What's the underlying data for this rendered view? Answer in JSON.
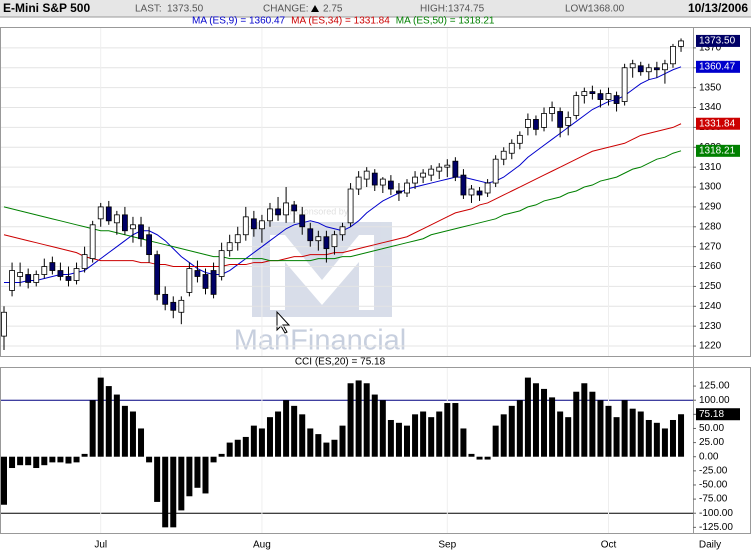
{
  "header": {
    "title": "E-Mini S&P 500",
    "stats": [
      {
        "label": "LAST:",
        "value": "1373.50"
      },
      {
        "label": "CHANGE:",
        "value": "2.75"
      },
      {
        "label": "HIGH:",
        "value": "1374.75"
      },
      {
        "label": "LOW:",
        "value": "1368.00"
      }
    ],
    "date": "10/13/2006",
    "watermark": "ManFinancial",
    "watermark_caption": "chart sponsored by"
  },
  "chart_data": [
    {
      "type": "candlestick",
      "open": [
        1225,
        1248,
        1255,
        1256,
        1252,
        1256,
        1262,
        1258,
        1255,
        1253,
        1259,
        1264,
        1284,
        1290,
        1282,
        1286,
        1279,
        1281,
        1276,
        1266,
        1246,
        1242,
        1237,
        1247,
        1258,
        1256,
        1258,
        1255,
        1268,
        1272,
        1276,
        1284,
        1279,
        1283,
        1289,
        1286,
        1291,
        1286,
        1279,
        1273,
        1275,
        1270,
        1276,
        1282,
        1299,
        1304,
        1307,
        1301,
        1303,
        1298,
        1297,
        1302,
        1305,
        1306,
        1308,
        1310,
        1313,
        1306,
        1296,
        1298,
        1297,
        1302,
        1314,
        1317,
        1322,
        1330,
        1334,
        1330,
        1337,
        1338,
        1331,
        1336,
        1346,
        1348,
        1347,
        1344,
        1346,
        1343,
        1360,
        1361,
        1358,
        1360,
        1359,
        1362,
        1370.75
      ],
      "high": [
        1240,
        1262,
        1262,
        1259,
        1258,
        1264,
        1265,
        1262,
        1260,
        1262,
        1270,
        1283,
        1292,
        1293,
        1288,
        1290,
        1285,
        1285,
        1280,
        1268,
        1250,
        1245,
        1245,
        1262,
        1263,
        1259,
        1262,
        1272,
        1276,
        1280,
        1290,
        1288,
        1286,
        1292,
        1295,
        1300,
        1293,
        1290,
        1282,
        1278,
        1278,
        1278,
        1282,
        1302,
        1308,
        1310,
        1309,
        1305,
        1306,
        1302,
        1304,
        1308,
        1309,
        1311,
        1312,
        1314,
        1315,
        1309,
        1301,
        1300,
        1304,
        1316,
        1320,
        1324,
        1328,
        1337,
        1336,
        1340,
        1343,
        1340,
        1338,
        1348,
        1350,
        1351,
        1349,
        1350,
        1348,
        1362,
        1364,
        1363,
        1362,
        1363,
        1364,
        1372,
        1374.75
      ],
      "low": [
        1218,
        1245,
        1250,
        1249,
        1250,
        1254,
        1256,
        1253,
        1250,
        1251,
        1257,
        1262,
        1280,
        1281,
        1276,
        1276,
        1272,
        1270,
        1262,
        1243,
        1238,
        1234,
        1231,
        1245,
        1252,
        1246,
        1244,
        1253,
        1265,
        1268,
        1273,
        1275,
        1272,
        1280,
        1283,
        1282,
        1282,
        1276,
        1270,
        1268,
        1262,
        1266,
        1273,
        1280,
        1296,
        1300,
        1298,
        1297,
        1296,
        1293,
        1295,
        1299,
        1302,
        1303,
        1304,
        1305,
        1303,
        1294,
        1292,
        1293,
        1295,
        1300,
        1311,
        1314,
        1319,
        1326,
        1326,
        1328,
        1333,
        1325,
        1326,
        1334,
        1342,
        1344,
        1340,
        1341,
        1338,
        1341,
        1355,
        1356,
        1354,
        1355,
        1352,
        1360,
        1368
      ],
      "close": [
        1237,
        1258,
        1257,
        1252,
        1256,
        1260,
        1258,
        1255,
        1253,
        1259,
        1266,
        1281,
        1290,
        1283,
        1286,
        1278,
        1281,
        1274,
        1266,
        1246,
        1241,
        1238,
        1243,
        1259,
        1255,
        1249,
        1246,
        1268,
        1272,
        1276,
        1285,
        1279,
        1283,
        1289,
        1286,
        1292,
        1288,
        1280,
        1273,
        1275,
        1269,
        1276,
        1280,
        1299,
        1305,
        1308,
        1301,
        1304,
        1299,
        1297,
        1302,
        1305,
        1307,
        1309,
        1310,
        1311,
        1305,
        1296,
        1299,
        1296,
        1302,
        1314,
        1318,
        1322,
        1326,
        1334,
        1329,
        1337,
        1340,
        1330,
        1335,
        1346,
        1348,
        1347,
        1344,
        1347,
        1342,
        1360,
        1362,
        1358,
        1360,
        1359,
        1362,
        1370.75,
        1373.5
      ],
      "up_color": "#ffffff",
      "down_color": "#000066",
      "last_label": "1373.50",
      "last_color": "#000066",
      "series": [
        {
          "name": "MA (ES,9) = 1360.47",
          "color": "#0000cc",
          "end_label": "1360.47",
          "values": [
            1252,
            1252,
            1252,
            1253,
            1253,
            1254,
            1255,
            1256,
            1256,
            1257,
            1258,
            1261,
            1264,
            1267,
            1270,
            1273,
            1276,
            1278,
            1278,
            1276,
            1273,
            1269,
            1265,
            1262,
            1259,
            1257,
            1256,
            1256,
            1258,
            1261,
            1264,
            1267,
            1270,
            1273,
            1276,
            1279,
            1281,
            1282,
            1283,
            1282,
            1280,
            1279,
            1278,
            1280,
            1283,
            1287,
            1290,
            1293,
            1295,
            1297,
            1299,
            1300,
            1301,
            1302,
            1303,
            1304,
            1305,
            1305,
            1304,
            1303,
            1302,
            1303,
            1305,
            1308,
            1311,
            1315,
            1318,
            1321,
            1324,
            1327,
            1330,
            1333,
            1336,
            1339,
            1341,
            1343,
            1344,
            1346,
            1349,
            1352,
            1354,
            1355,
            1357,
            1359,
            1360.47
          ]
        },
        {
          "name": "MA (ES,34) = 1331.84",
          "color": "#cc0000",
          "end_label": "1331.84",
          "values": [
            1276,
            1275,
            1274,
            1273,
            1272,
            1271,
            1270,
            1269,
            1268,
            1267,
            1265,
            1264,
            1263,
            1263,
            1263,
            1263,
            1263,
            1262,
            1262,
            1261,
            1261,
            1260,
            1260,
            1260,
            1260,
            1260,
            1260,
            1260,
            1261,
            1261,
            1261,
            1262,
            1262,
            1263,
            1263,
            1264,
            1265,
            1265,
            1266,
            1266,
            1266,
            1267,
            1267,
            1268,
            1269,
            1270,
            1271,
            1272,
            1273,
            1274,
            1275,
            1277,
            1279,
            1281,
            1283,
            1285,
            1287,
            1288,
            1289,
            1291,
            1292,
            1294,
            1296,
            1298,
            1300,
            1302,
            1304,
            1306,
            1308,
            1310,
            1312,
            1314,
            1316,
            1318,
            1319,
            1320,
            1321,
            1322,
            1324,
            1326,
            1327,
            1328,
            1329,
            1330,
            1331.84
          ]
        },
        {
          "name": "MA (ES,50) = 1318.21",
          "color": "#008000",
          "end_label": "1318.21",
          "values": [
            1290,
            1289,
            1288,
            1287,
            1286,
            1285,
            1284,
            1283,
            1282,
            1281,
            1280,
            1279,
            1278,
            1278,
            1277,
            1276,
            1275,
            1274,
            1273,
            1272,
            1271,
            1270,
            1269,
            1268,
            1267,
            1266,
            1265,
            1265,
            1264,
            1264,
            1264,
            1264,
            1264,
            1263,
            1263,
            1263,
            1263,
            1263,
            1263,
            1264,
            1264,
            1264,
            1265,
            1265,
            1266,
            1267,
            1268,
            1269,
            1270,
            1271,
            1272,
            1273,
            1274,
            1276,
            1277,
            1278,
            1279,
            1280,
            1281,
            1282,
            1283,
            1284,
            1286,
            1287,
            1288,
            1290,
            1291,
            1293,
            1294,
            1295,
            1297,
            1298,
            1300,
            1301,
            1303,
            1304,
            1305,
            1307,
            1309,
            1310,
            1312,
            1314,
            1315,
            1317,
            1318.21
          ]
        }
      ],
      "ylim": [
        1215,
        1380
      ],
      "yticks": [
        1220,
        1230,
        1240,
        1250,
        1260,
        1270,
        1280,
        1290,
        1300,
        1310,
        1320,
        1330,
        1340,
        1350,
        1360,
        1370
      ],
      "grid": true
    },
    {
      "type": "bar",
      "title": "CCI (ES,20) = 75.18",
      "color": "#000000",
      "end_label": "75.18",
      "x_label": "Daily",
      "categories": [
        null,
        null,
        null,
        null,
        null,
        null,
        null,
        null,
        null,
        null,
        null,
        null,
        "Jul",
        null,
        null,
        null,
        null,
        null,
        null,
        null,
        null,
        null,
        null,
        null,
        null,
        null,
        null,
        null,
        null,
        null,
        null,
        null,
        "Aug",
        null,
        null,
        null,
        null,
        null,
        null,
        null,
        null,
        null,
        null,
        null,
        null,
        null,
        null,
        null,
        null,
        null,
        null,
        null,
        null,
        null,
        null,
        "Sep",
        null,
        null,
        null,
        null,
        null,
        null,
        null,
        null,
        null,
        null,
        null,
        null,
        null,
        null,
        null,
        null,
        null,
        null,
        null,
        "Oct",
        null,
        null,
        null,
        null,
        null,
        null,
        null,
        null,
        null
      ],
      "values": [
        -85,
        -20,
        -15,
        -15,
        -20,
        -15,
        -10,
        -10,
        -12,
        -10,
        5,
        100,
        140,
        125,
        110,
        90,
        80,
        50,
        -10,
        -80,
        -125,
        -125,
        -95,
        -70,
        -55,
        -65,
        -10,
        5,
        25,
        30,
        35,
        55,
        50,
        70,
        80,
        100,
        90,
        75,
        50,
        40,
        25,
        30,
        55,
        130,
        135,
        130,
        110,
        100,
        65,
        60,
        55,
        75,
        80,
        70,
        80,
        95,
        95,
        50,
        5,
        -5,
        -5,
        55,
        75,
        90,
        100,
        140,
        130,
        120,
        105,
        80,
        70,
        115,
        130,
        115,
        100,
        90,
        70,
        100,
        85,
        80,
        65,
        60,
        50,
        65,
        75.18
      ],
      "ylim": [
        -135,
        157
      ],
      "yticks": [
        {
          "value": 125,
          "label": "125.00"
        },
        {
          "value": 100,
          "label": "100.00"
        },
        {
          "value": 75,
          "label": "75.00"
        },
        {
          "value": 50,
          "label": "50.00"
        },
        {
          "value": 25,
          "label": "25.00"
        },
        {
          "value": 0,
          "label": "0.00"
        },
        {
          "value": -25,
          "label": "-25.00"
        },
        {
          "value": -50,
          "label": "-50.00"
        },
        {
          "value": -75,
          "label": "-75.00"
        },
        {
          "value": -100,
          "label": "-100.00"
        },
        {
          "value": -125,
          "label": "-125.00"
        }
      ],
      "hlines": [
        {
          "value": 100,
          "color": "#000080"
        },
        {
          "value": -100,
          "color": "#000000"
        }
      ]
    }
  ]
}
